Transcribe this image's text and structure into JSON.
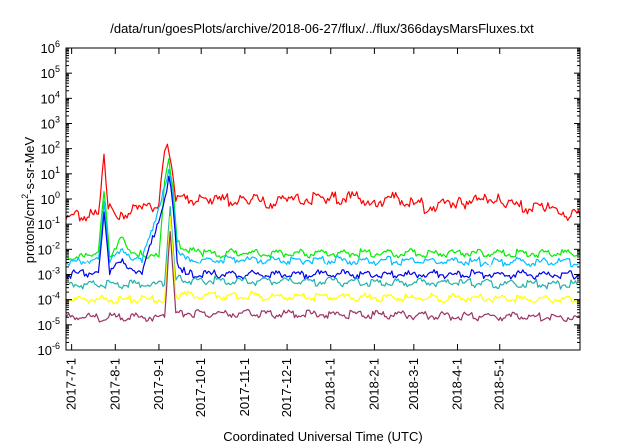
{
  "chart_data": {
    "type": "line",
    "title": "/data/run/goesPlots/archive/2018-06-27/flux/../flux/366daysMarsFluxes.txt",
    "xlabel": "Coordinated Universal Time (UTC)",
    "ylabel": "protons/cm2-s-sr-MeV",
    "yscale": "log",
    "ylim": [
      1e-06,
      1000000.0
    ],
    "xlim": [
      "2017-06-27",
      "2018-06-27"
    ],
    "grid": false,
    "x_ticks": [
      "2017-7-1",
      "2017-8-1",
      "2017-9-1",
      "2017-10-1",
      "2017-11-1",
      "2017-12-1",
      "2018-1-1",
      "2018-2-1",
      "2018-3-1",
      "2018-4-1",
      "2018-5-1"
    ],
    "y_ticks": [
      {
        "base": "10",
        "exp": "-6",
        "value": 1e-06
      },
      {
        "base": "10",
        "exp": "-5",
        "value": 1e-05
      },
      {
        "base": "10",
        "exp": "-4",
        "value": 0.0001
      },
      {
        "base": "10",
        "exp": "-3",
        "value": 0.001
      },
      {
        "base": "10",
        "exp": "-2",
        "value": 0.01
      },
      {
        "base": "10",
        "exp": "-1",
        "value": 0.1
      },
      {
        "base": "10",
        "exp": "0",
        "value": 1
      },
      {
        "base": "10",
        "exp": "1",
        "value": 10
      },
      {
        "base": "10",
        "exp": "2",
        "value": 100
      },
      {
        "base": "10",
        "exp": "3",
        "value": 1000
      },
      {
        "base": "10",
        "exp": "4",
        "value": 10000
      },
      {
        "base": "10",
        "exp": "5",
        "value": 100000
      },
      {
        "base": "10",
        "exp": "6",
        "value": 1000000
      }
    ],
    "series": [
      {
        "color": "#ff0000",
        "x": [
          "2017-06-27",
          "2017-07-10",
          "2017-07-20",
          "2017-07-24",
          "2017-07-27",
          "2017-08-05",
          "2017-08-20",
          "2017-09-01",
          "2017-09-05",
          "2017-09-07",
          "2017-09-10",
          "2017-09-13",
          "2017-09-20",
          "2017-10-01",
          "2017-10-15",
          "2017-11-01",
          "2017-11-15",
          "2017-12-01",
          "2017-12-15",
          "2018-01-01",
          "2018-01-15",
          "2018-02-01",
          "2018-02-15",
          "2018-03-01",
          "2018-03-15",
          "2018-04-01",
          "2018-04-15",
          "2018-05-01",
          "2018-05-15",
          "2018-06-01",
          "2018-06-15",
          "2018-06-27"
        ],
        "y": [
          0.15,
          0.2,
          0.25,
          60,
          0.4,
          0.3,
          0.4,
          0.6,
          80,
          150,
          20,
          0.8,
          1.0,
          1.2,
          0.9,
          1.0,
          0.7,
          0.8,
          1.0,
          1.2,
          1.1,
          0.9,
          1.1,
          0.6,
          0.5,
          0.8,
          0.9,
          1.0,
          0.5,
          0.4,
          0.3,
          0.2
        ]
      },
      {
        "color": "#00ee00",
        "x": [
          "2017-06-27",
          "2017-07-10",
          "2017-07-20",
          "2017-07-24",
          "2017-07-28",
          "2017-08-05",
          "2017-08-10",
          "2017-08-20",
          "2017-09-01",
          "2017-09-05",
          "2017-09-08",
          "2017-09-11",
          "2017-09-14",
          "2017-09-20",
          "2017-10-01",
          "2018-06-27"
        ],
        "y": [
          0.005,
          0.005,
          0.008,
          2,
          0.005,
          0.03,
          0.01,
          0.006,
          0.005,
          5,
          40,
          3,
          0.02,
          0.01,
          0.007,
          0.007
        ]
      },
      {
        "color": "#00bfff",
        "x": [
          "2017-06-27",
          "2017-07-20",
          "2017-07-24",
          "2017-07-28",
          "2017-08-05",
          "2017-08-20",
          "2017-09-05",
          "2017-09-08",
          "2017-09-11",
          "2017-09-14",
          "2017-09-20",
          "2018-06-27"
        ],
        "y": [
          0.003,
          0.004,
          0.8,
          0.003,
          0.01,
          0.003,
          3,
          15,
          1,
          0.01,
          0.004,
          0.003
        ]
      },
      {
        "color": "#ffffff",
        "x": [
          "2017-06-27",
          "2017-09-05",
          "2017-09-09",
          "2017-09-13",
          "2017-09-20",
          "2018-06-27"
        ],
        "y": [
          0.002,
          0.002,
          2,
          0.005,
          0.002,
          0.0015
        ]
      },
      {
        "color": "#0000ee",
        "x": [
          "2017-06-27",
          "2017-07-20",
          "2017-07-24",
          "2017-07-28",
          "2017-08-05",
          "2017-08-20",
          "2017-09-05",
          "2017-09-08",
          "2017-09-11",
          "2017-09-14",
          "2017-09-20",
          "2018-06-27"
        ],
        "y": [
          0.001,
          0.0012,
          0.3,
          0.001,
          0.003,
          0.001,
          1,
          8,
          0.5,
          0.003,
          0.001,
          0.001
        ]
      },
      {
        "color": "#20b2aa",
        "x": [
          "2017-06-27",
          "2017-09-05",
          "2017-09-09",
          "2017-09-13",
          "2018-06-27"
        ],
        "y": [
          0.0004,
          0.0004,
          0.5,
          0.0006,
          0.0004
        ]
      },
      {
        "color": "#ffff00",
        "x": [
          "2017-06-27",
          "2017-09-05",
          "2017-09-09",
          "2017-09-13",
          "2018-06-27"
        ],
        "y": [
          0.0001,
          0.0001,
          0.2,
          0.00015,
          0.0001
        ]
      },
      {
        "color": "#993366",
        "x": [
          "2017-06-27",
          "2017-09-05",
          "2017-09-09",
          "2017-09-13",
          "2018-06-27"
        ],
        "y": [
          2e-05,
          2e-05,
          0.05,
          3e-05,
          2e-05
        ]
      }
    ]
  }
}
